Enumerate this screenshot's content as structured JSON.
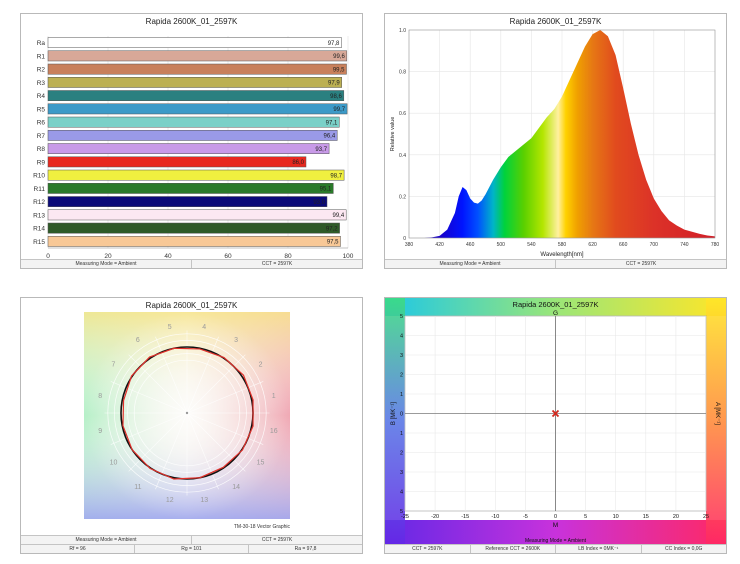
{
  "chart_data": [
    {
      "type": "bar",
      "title": "Rapida 2600K_01_2597K",
      "categories": [
        "Ra",
        "R1",
        "R2",
        "R3",
        "R4",
        "R5",
        "R6",
        "R7",
        "R8",
        "R9",
        "R10",
        "R11",
        "R12",
        "R13",
        "R14",
        "R15"
      ],
      "values": [
        97.8,
        99.6,
        99.5,
        97.9,
        98.6,
        99.7,
        97.1,
        96.4,
        93.7,
        86.0,
        98.7,
        95.1,
        93.0,
        99.4,
        97.2,
        97.5
      ],
      "value_labels": [
        "97,8",
        "99,6",
        "99,5",
        "97,9",
        "98,6",
        "99,7",
        "97,1",
        "96,4",
        "93,7",
        "86,0",
        "98,7",
        "95,1",
        "93,0",
        "99,4",
        "97,2",
        "97,5"
      ],
      "colors": [
        "#ffffff",
        "#d8a898",
        "#c8805c",
        "#bcb052",
        "#2a8080",
        "#3c9ac8",
        "#7ad0c8",
        "#9a9ae8",
        "#c89ae8",
        "#e8281e",
        "#f0f040",
        "#2a7a2a",
        "#0a0a78",
        "#fce8f2",
        "#2e5a28",
        "#f8c896"
      ],
      "xlim": [
        0,
        100
      ],
      "xticks": [
        "0",
        "20",
        "40",
        "60",
        "80",
        "100"
      ],
      "status": [
        "Measuring Mode = Ambient",
        "CCT = 2597K"
      ]
    },
    {
      "type": "area",
      "title": "Rapida 2600K_01_2597K",
      "xlabel": "Wavelength[nm]",
      "ylabel": "Relative value",
      "xlim": [
        380,
        780
      ],
      "ylim": [
        0,
        1
      ],
      "xticks": [
        "380",
        "420",
        "460",
        "500",
        "540",
        "580",
        "620",
        "660",
        "700",
        "740",
        "780"
      ],
      "yticks": [
        "0",
        "0.2",
        "0.4",
        "0.6",
        "0.8",
        "1.0"
      ],
      "x": [
        380,
        400,
        410,
        420,
        430,
        440,
        445,
        450,
        455,
        460,
        465,
        470,
        475,
        480,
        490,
        500,
        510,
        520,
        530,
        540,
        550,
        560,
        570,
        580,
        590,
        600,
        610,
        620,
        630,
        640,
        650,
        660,
        670,
        680,
        690,
        700,
        710,
        720,
        730,
        740,
        750,
        760,
        770,
        780
      ],
      "y": [
        0,
        0,
        0.003,
        0.01,
        0.04,
        0.12,
        0.2,
        0.245,
        0.23,
        0.19,
        0.17,
        0.165,
        0.18,
        0.21,
        0.28,
        0.34,
        0.39,
        0.42,
        0.45,
        0.48,
        0.53,
        0.58,
        0.62,
        0.68,
        0.76,
        0.84,
        0.92,
        0.98,
        1.0,
        0.97,
        0.88,
        0.72,
        0.55,
        0.4,
        0.28,
        0.19,
        0.13,
        0.085,
        0.06,
        0.04,
        0.03,
        0.02,
        0.012,
        0.008
      ],
      "status": [
        "Measuring Mode = Ambient",
        "CCT = 2597K"
      ]
    },
    {
      "type": "scatter",
      "title": "Rapida 2600K_01_2597K",
      "annotation": "TM-30-18 Vector Graphic",
      "hue_bins": [
        "1",
        "2",
        "3",
        "4",
        "5",
        "6",
        "7",
        "8",
        "9",
        "10",
        "11",
        "12",
        "13",
        "14",
        "15",
        "16"
      ],
      "status": [
        "Measuring Mode = Ambient",
        "CCT = 2597K"
      ],
      "stats": [
        "Rf = 96",
        "Rg = 101",
        "Ra = 97,8"
      ]
    },
    {
      "type": "scatter",
      "title": "Rapida 2600K_01_2597K",
      "top_label": "G",
      "bottom_label": "M",
      "xlabel": "A [MK⁻¹]",
      "ylabel": "B [MK⁻¹]",
      "xlim": [
        -25,
        25
      ],
      "ylim": [
        -5,
        5
      ],
      "xticks": [
        "-25",
        "-20",
        "-15",
        "-10",
        "-5",
        "0",
        "5",
        "10",
        "15",
        "20",
        "25"
      ],
      "yticks": [
        "5",
        "4",
        "3",
        "2",
        "1",
        "0",
        "1",
        "2",
        "3",
        "4",
        "5"
      ],
      "point": [
        0,
        0
      ],
      "bottom_caption": "Measuring Mode = Ambient",
      "status": [
        "CCT = 2597K",
        "Reference CCT = 2600K",
        "LB Index = 0MK⁻¹",
        "CC Index = 0,0G"
      ]
    }
  ]
}
